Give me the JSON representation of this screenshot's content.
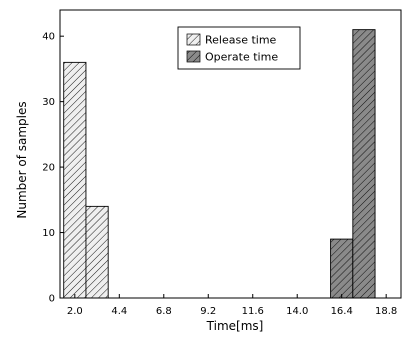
{
  "chart_data": {
    "type": "bar",
    "xlabel": "Time[ms]",
    "ylabel": "Number of samples",
    "x_ticks": [
      "2.0",
      "4.4",
      "6.8",
      "9.2",
      "11.6",
      "14.0",
      "16.4",
      "18.8"
    ],
    "y_ticks": [
      "0",
      "10",
      "20",
      "30",
      "40"
    ],
    "xlim": [
      1.2,
      19.6
    ],
    "ylim": [
      0,
      44
    ],
    "bin_width": 1.2,
    "grid": false,
    "legend_position": "top-center",
    "series": [
      {
        "name": "Release time",
        "pattern": "light-hatch",
        "bins": [
          {
            "x_start": 1.4,
            "value": 36
          },
          {
            "x_start": 2.6,
            "value": 14
          }
        ]
      },
      {
        "name": "Operate time",
        "pattern": "dark-hatch",
        "bins": [
          {
            "x_start": 15.8,
            "value": 9
          },
          {
            "x_start": 17.0,
            "value": 41
          }
        ]
      }
    ],
    "colors": {
      "light_fill": "#efefef",
      "dark_fill": "#8a8a8a",
      "hatch": "#000000",
      "axis": "#000000"
    }
  }
}
